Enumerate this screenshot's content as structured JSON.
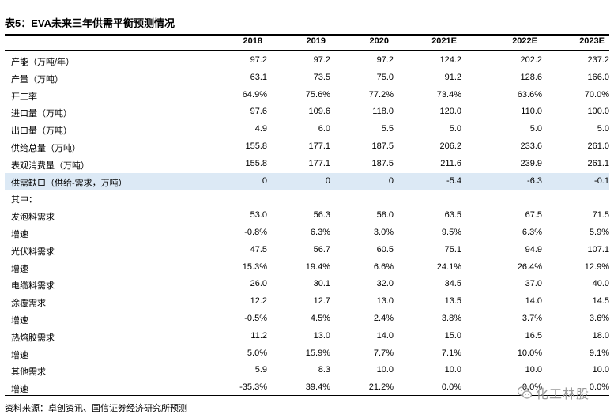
{
  "title": "表5：EVA未来三年供需平衡预测情况",
  "headers": [
    "2018",
    "2019",
    "2020",
    "2021E",
    "2022E",
    "2023E"
  ],
  "rows": [
    {
      "label": "产能（万吨/年）",
      "values": [
        "97.2",
        "97.2",
        "97.2",
        "124.2",
        "202.2",
        "237.2"
      ]
    },
    {
      "label": "产量（万吨）",
      "values": [
        "63.1",
        "73.5",
        "75.0",
        "91.2",
        "128.6",
        "166.0"
      ]
    },
    {
      "label": "开工率",
      "values": [
        "64.9%",
        "75.6%",
        "77.2%",
        "73.4%",
        "63.6%",
        "70.0%"
      ]
    },
    {
      "label": "进口量（万吨）",
      "values": [
        "97.6",
        "109.6",
        "118.0",
        "120.0",
        "110.0",
        "100.0"
      ]
    },
    {
      "label": "出口量（万吨）",
      "values": [
        "4.9",
        "6.0",
        "5.5",
        "5.0",
        "5.0",
        "5.0"
      ]
    },
    {
      "label": "供给总量（万吨）",
      "values": [
        "155.8",
        "177.1",
        "187.5",
        "206.2",
        "233.6",
        "261.0"
      ]
    },
    {
      "label": "表观消费量（万吨）",
      "values": [
        "155.8",
        "177.1",
        "187.5",
        "211.6",
        "239.9",
        "261.1"
      ]
    },
    {
      "label": "供需缺口（供给-需求，万吨）",
      "values": [
        "0",
        "0",
        "0",
        "-5.4",
        "-6.3",
        "-0.1"
      ]
    },
    {
      "label": "其中：",
      "values": [
        "",
        "",
        "",
        "",
        "",
        ""
      ]
    },
    {
      "label": "发泡料需求",
      "values": [
        "53.0",
        "56.3",
        "58.0",
        "63.5",
        "67.5",
        "71.5"
      ]
    },
    {
      "label": "增速",
      "values": [
        "-0.8%",
        "6.3%",
        "3.0%",
        "9.5%",
        "6.3%",
        "5.9%"
      ]
    },
    {
      "label": "光伏料需求",
      "values": [
        "47.5",
        "56.7",
        "60.5",
        "75.1",
        "94.9",
        "107.1"
      ]
    },
    {
      "label": "增速",
      "values": [
        "15.3%",
        "19.4%",
        "6.6%",
        "24.1%",
        "26.4%",
        "12.9%"
      ]
    },
    {
      "label": "电缆料需求",
      "values": [
        "26.0",
        "30.1",
        "32.0",
        "34.5",
        "37.0",
        "40.0"
      ]
    },
    {
      "label": "涂覆需求",
      "values": [
        "12.2",
        "12.7",
        "13.0",
        "13.5",
        "14.0",
        "14.5"
      ]
    },
    {
      "label": "增速",
      "values": [
        "-0.5%",
        "4.5%",
        "2.4%",
        "3.8%",
        "3.7%",
        "3.6%"
      ]
    },
    {
      "label": "热熔胶需求",
      "values": [
        "11.2",
        "13.0",
        "14.0",
        "15.0",
        "16.5",
        "18.0"
      ]
    },
    {
      "label": "增速",
      "values": [
        "5.0%",
        "15.9%",
        "7.7%",
        "7.1%",
        "10.0%",
        "9.1%"
      ]
    },
    {
      "label": "其他需求",
      "values": [
        "5.9",
        "8.3",
        "10.0",
        "10.0",
        "10.0",
        "10.0"
      ]
    },
    {
      "label": "增速",
      "values": [
        "-35.3%",
        "39.4%",
        "21.2%",
        "0.0%",
        "0.0%",
        "0.0%"
      ]
    }
  ],
  "source": "资料来源：卓创资讯、国信证券经济研究所预测",
  "watermark": {
    "text": "化工林股",
    "icon": "wechat-icon"
  },
  "colors": {
    "highlight_row": "#dce9f5",
    "watermark": "#9a9a9a"
  }
}
